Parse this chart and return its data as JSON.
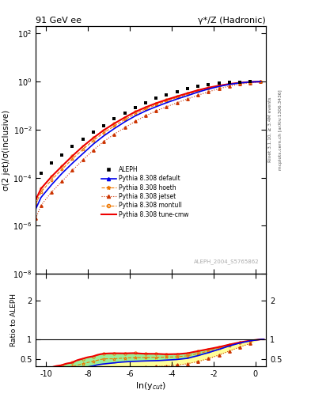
{
  "title_left": "91 GeV ee",
  "title_right": "γ*/Z (Hadronic)",
  "ylabel_main": "σ(2 jet)/σ(inclusive)",
  "ylabel_ratio": "Ratio to ALEPH",
  "xlabel": "ln(y$_{cut}$)",
  "watermark": "ALEPH_2004_S5765862",
  "rivet_label": "Rivet 3.1.10, ≥ 3.4M events",
  "arxiv_label": "mcplots.cern.ch [arXiv:1306.3436]",
  "xlim": [
    -10.5,
    0.5
  ],
  "ylim_main": [
    1e-08,
    200
  ],
  "ylim_ratio": [
    0.3,
    3.0
  ],
  "data_x": [
    -10.25,
    -9.75,
    -9.25,
    -8.75,
    -8.25,
    -7.75,
    -7.25,
    -6.75,
    -6.25,
    -5.75,
    -5.25,
    -4.75,
    -4.25,
    -3.75,
    -3.25,
    -2.75,
    -2.25,
    -1.75,
    -1.25,
    -0.75,
    -0.25
  ],
  "data_y": [
    0.00015,
    0.0004,
    0.0009,
    0.002,
    0.004,
    0.008,
    0.015,
    0.028,
    0.05,
    0.085,
    0.135,
    0.2,
    0.285,
    0.39,
    0.51,
    0.63,
    0.745,
    0.845,
    0.92,
    0.97,
    0.995
  ],
  "default_x": [
    -10.5,
    -10.25,
    -9.75,
    -9.25,
    -8.75,
    -8.25,
    -7.75,
    -7.25,
    -6.75,
    -6.25,
    -5.75,
    -5.25,
    -4.75,
    -4.25,
    -3.75,
    -3.25,
    -2.75,
    -2.25,
    -1.75,
    -1.25,
    -0.75,
    -0.25,
    0.25
  ],
  "default_y": [
    5e-06,
    1.5e-05,
    5e-05,
    0.00015,
    0.0004,
    0.001,
    0.0025,
    0.0055,
    0.011,
    0.021,
    0.037,
    0.06,
    0.09,
    0.132,
    0.188,
    0.26,
    0.365,
    0.49,
    0.625,
    0.765,
    0.88,
    0.96,
    0.998
  ],
  "hoeth_x": [
    -10.5,
    -10.25,
    -9.75,
    -9.25,
    -8.75,
    -8.25,
    -7.75,
    -7.25,
    -6.75,
    -6.25,
    -5.75,
    -5.25,
    -4.75,
    -4.25,
    -3.75,
    -3.25,
    -2.75,
    -2.25,
    -1.75,
    -1.25,
    -0.75,
    -0.25,
    0.25
  ],
  "hoeth_y": [
    8e-06,
    2.5e-05,
    8e-05,
    0.00022,
    0.0006,
    0.0015,
    0.0035,
    0.0075,
    0.014,
    0.026,
    0.045,
    0.072,
    0.108,
    0.155,
    0.215,
    0.295,
    0.4,
    0.52,
    0.65,
    0.78,
    0.89,
    0.965,
    0.998
  ],
  "jetset_x": [
    -10.5,
    -10.25,
    -9.75,
    -9.25,
    -8.75,
    -8.25,
    -7.75,
    -7.25,
    -6.75,
    -6.25,
    -5.75,
    -5.25,
    -4.75,
    -4.25,
    -3.75,
    -3.25,
    -2.75,
    -2.25,
    -1.75,
    -1.25,
    -0.75,
    -0.25,
    0.25
  ],
  "jetset_y": [
    2e-06,
    7e-06,
    2.5e-05,
    7e-05,
    0.0002,
    0.00055,
    0.0014,
    0.0032,
    0.0065,
    0.012,
    0.022,
    0.038,
    0.06,
    0.09,
    0.132,
    0.19,
    0.27,
    0.375,
    0.505,
    0.645,
    0.78,
    0.895,
    0.998
  ],
  "montull_x": [
    -10.5,
    -10.25,
    -9.75,
    -9.25,
    -8.75,
    -8.25,
    -7.75,
    -7.25,
    -6.75,
    -6.25,
    -5.75,
    -5.25,
    -4.75,
    -4.25,
    -3.75,
    -3.25,
    -2.75,
    -2.25,
    -1.75,
    -1.25,
    -0.75,
    -0.25,
    0.25
  ],
  "montull_y": [
    1.2e-05,
    3.5e-05,
    0.00011,
    0.0003,
    0.0008,
    0.002,
    0.0045,
    0.0095,
    0.018,
    0.032,
    0.055,
    0.085,
    0.125,
    0.175,
    0.24,
    0.325,
    0.435,
    0.555,
    0.675,
    0.795,
    0.895,
    0.966,
    0.998
  ],
  "tunecmw_x": [
    -10.5,
    -10.25,
    -9.75,
    -9.25,
    -8.75,
    -8.25,
    -7.75,
    -7.25,
    -6.75,
    -6.25,
    -5.75,
    -5.25,
    -4.75,
    -4.25,
    -3.75,
    -3.25,
    -2.75,
    -2.25,
    -1.75,
    -1.25,
    -0.75,
    -0.25,
    0.25
  ],
  "tunecmw_y": [
    1.2e-05,
    3.5e-05,
    0.00011,
    0.0003,
    0.0008,
    0.002,
    0.0045,
    0.0095,
    0.018,
    0.032,
    0.055,
    0.085,
    0.126,
    0.176,
    0.242,
    0.328,
    0.438,
    0.558,
    0.678,
    0.798,
    0.897,
    0.967,
    0.998
  ],
  "color_data": "#000000",
  "color_default": "#0000ee",
  "color_hoeth": "#ee7700",
  "color_jetset": "#cc3300",
  "color_montull": "#ee7700",
  "color_tunecmw": "#ee0000",
  "legend_entries": [
    "ALEPH",
    "Pythia 8.308 default",
    "Pythia 8.308 hoeth",
    "Pythia 8.308 jetset",
    "Pythia 8.308 montull",
    "Pythia 8.308 tune-cmw"
  ]
}
